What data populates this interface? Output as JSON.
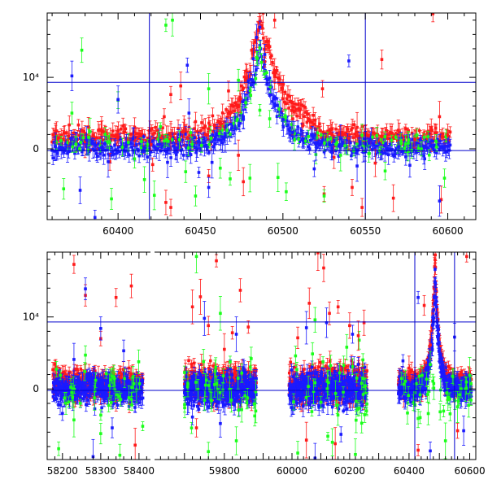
{
  "colors": {
    "red": "#ff1a1a",
    "green": "#1aff1a",
    "blue": "#1a1aff",
    "axis": "#000000",
    "reference": "#0000cc"
  },
  "chart_data": [
    {
      "type": "scatter",
      "title": "",
      "xlabel": "",
      "ylabel": "",
      "xlim": [
        60357,
        60617
      ],
      "ylim": [
        -9900,
        19000
      ],
      "xticks": [
        60400,
        60450,
        60500,
        60550,
        60600
      ],
      "yticks": [
        {
          "value": 0,
          "label": "0"
        },
        {
          "value": 10000,
          "label": "10⁴"
        }
      ],
      "reference_lines": {
        "horizontal": [
          -250,
          9300
        ],
        "vertical": [
          60419,
          60550
        ]
      },
      "grid": false,
      "legend": "none",
      "error_bars": true,
      "series": [
        {
          "color": "red",
          "points": [
            [
              60362,
              2200
            ],
            [
              60370,
              1800
            ],
            [
              60380,
              1000
            ],
            [
              60390,
              2600
            ],
            [
              60400,
              1600
            ],
            [
              60410,
              1200
            ],
            [
              60420,
              600
            ],
            [
              60428,
              4500
            ],
            [
              60432,
              1800
            ],
            [
              60440,
              2500
            ],
            [
              60447,
              3800
            ],
            [
              60455,
              2800
            ],
            [
              60462,
              3500
            ],
            [
              60468,
              5000
            ],
            [
              60474,
              7200
            ],
            [
              60478,
              9800
            ],
            [
              60482,
              13500
            ],
            [
              60485,
              16500
            ],
            [
              60488,
              19000
            ],
            [
              60491,
              14500
            ],
            [
              60495,
              10500
            ],
            [
              60500,
              7000
            ],
            [
              60506,
              4200
            ],
            [
              60512,
              3200
            ],
            [
              60520,
              2700
            ],
            [
              60530,
              2000
            ],
            [
              60540,
              1500
            ],
            [
              60550,
              2100
            ],
            [
              60560,
              1700
            ],
            [
              60570,
              2600
            ],
            [
              60580,
              1300
            ],
            [
              60590,
              2900
            ],
            [
              60600,
              1900
            ],
            [
              60395,
              -1800
            ],
            [
              60429,
              -7500
            ],
            [
              60432,
              -8200
            ],
            [
              60476,
              -4600
            ],
            [
              60525,
              -6300
            ],
            [
              60542,
              -5400
            ],
            [
              60548,
              -8200
            ],
            [
              60567,
              -6900
            ],
            [
              60596,
              -7100
            ],
            [
              60432,
              7600
            ],
            [
              60438,
              8800
            ],
            [
              60467,
              8100
            ],
            [
              60489,
              12200
            ],
            [
              60495,
              18000
            ],
            [
              60524,
              8400
            ],
            [
              60531,
              -1200
            ],
            [
              60545,
              3000
            ],
            [
              60556,
              -2000
            ],
            [
              60560,
              12500
            ],
            [
              60591,
              18900
            ],
            [
              60595,
              4500
            ],
            [
              60403,
              3200
            ],
            [
              60421,
              -2200
            ],
            [
              60455,
              -3800
            ],
            [
              60473,
              -900
            ]
          ]
        },
        {
          "color": "green",
          "points": [
            [
              60367,
              -5600
            ],
            [
              60372,
              5000
            ],
            [
              60378,
              13800
            ],
            [
              60383,
              2400
            ],
            [
              60396,
              -7000
            ],
            [
              60400,
              6800
            ],
            [
              60410,
              -1400
            ],
            [
              60416,
              -4300
            ],
            [
              60422,
              -6500
            ],
            [
              60425,
              1900
            ],
            [
              60429,
              17300
            ],
            [
              60433,
              18000
            ],
            [
              60441,
              -3200
            ],
            [
              60447,
              -6600
            ],
            [
              60455,
              8400
            ],
            [
              60462,
              -2700
            ],
            [
              60468,
              -4200
            ],
            [
              60473,
              9600
            ],
            [
              60480,
              -4100
            ],
            [
              60486,
              5400
            ],
            [
              60492,
              4200
            ],
            [
              60497,
              -4000
            ],
            [
              60502,
              -6000
            ],
            [
              60507,
              1300
            ],
            [
              60520,
              -800
            ],
            [
              60525,
              -6600
            ],
            [
              60535,
              -900
            ],
            [
              60548,
              1900
            ],
            [
              60562,
              -3100
            ],
            [
              60576,
              800
            ],
            [
              60588,
              1700
            ],
            [
              60598,
              -4100
            ]
          ]
        },
        {
          "color": "blue",
          "points": [
            [
              60362,
              300
            ],
            [
              60370,
              -400
            ],
            [
              60372,
              10200
            ],
            [
              60377,
              -5800
            ],
            [
              60381,
              1200
            ],
            [
              60386,
              -9600
            ],
            [
              60390,
              200
            ],
            [
              60394,
              -1800
            ],
            [
              60400,
              6900
            ],
            [
              60409,
              1400
            ],
            [
              60415,
              -400
            ],
            [
              60425,
              600
            ],
            [
              60430,
              -1900
            ],
            [
              60436,
              100
            ],
            [
              60443,
              5000
            ],
            [
              60449,
              -3300
            ],
            [
              60455,
              -5400
            ],
            [
              60459,
              700
            ],
            [
              60465,
              1700
            ],
            [
              60471,
              2800
            ],
            [
              60476,
              4500
            ],
            [
              60479,
              9500
            ],
            [
              60482,
              12600
            ],
            [
              60484,
              15600
            ],
            [
              60486,
              17000
            ],
            [
              60489,
              13200
            ],
            [
              60492,
              9900
            ],
            [
              60495,
              6300
            ],
            [
              60500,
              4100
            ],
            [
              60506,
              2300
            ],
            [
              60512,
              1400
            ],
            [
              60520,
              600
            ],
            [
              60530,
              -500
            ],
            [
              60535,
              1400
            ],
            [
              60540,
              12300
            ],
            [
              60545,
              -2400
            ],
            [
              60550,
              700
            ],
            [
              60560,
              -400
            ],
            [
              60570,
              300
            ],
            [
              60577,
              -2300
            ],
            [
              60586,
              -1400
            ],
            [
              60595,
              -7300
            ],
            [
              60600,
              400
            ],
            [
              60442,
              11700
            ],
            [
              60457,
              -1900
            ],
            [
              60519,
              -2800
            ]
          ]
        }
      ]
    },
    {
      "type": "scatter",
      "title": "",
      "xlabel": "",
      "ylabel": "",
      "broken_x_axis": true,
      "segments": [
        {
          "xlim": [
            58160,
            58430
          ],
          "xticks": [
            58200,
            58300,
            58400
          ]
        },
        {
          "xlim": [
            59625,
            59890
          ],
          "xticks": [
            59800
          ]
        },
        {
          "xlim": [
            59890,
            60285
          ],
          "xticks": [
            60000,
            60200
          ]
        },
        {
          "xlim": [
            60285,
            60620
          ],
          "xticks": [
            60400,
            60600
          ]
        }
      ],
      "ylim": [
        -9800,
        19000
      ],
      "yticks": [
        {
          "value": 0,
          "label": "0"
        },
        {
          "value": 10000,
          "label": "10⁴"
        }
      ],
      "reference_lines": {
        "horizontal": [
          -200,
          9300
        ],
        "vertical": [
          60419,
          60550
        ]
      },
      "grid": false,
      "legend": "none",
      "error_bars": true,
      "blocks": [
        {
          "x_start": 58175,
          "x_end": 58410,
          "spread": 2500
        },
        {
          "x_start": 59700,
          "x_end": 59880,
          "spread": 3000
        },
        {
          "x_start": 59990,
          "x_end": 60260,
          "spread": 3200
        },
        {
          "x_start": 60365,
          "x_end": 60605,
          "spread": 2000
        }
      ],
      "peak": {
        "x": 60486,
        "max": 19000,
        "width": 14
      },
      "series": [
        {
          "color": "red",
          "points": [
            [
              58230,
              17300
            ],
            [
              58260,
              13000
            ],
            [
              58300,
              7000
            ],
            [
              58340,
              12700
            ],
            [
              58380,
              14300
            ],
            [
              58390,
              -7800
            ],
            [
              59720,
              11400
            ],
            [
              59740,
              12800
            ],
            [
              59760,
              8800
            ],
            [
              59780,
              17800
            ],
            [
              59800,
              5500
            ],
            [
              59820,
              7800
            ],
            [
              59840,
              13700
            ],
            [
              59860,
              8600
            ],
            [
              60020,
              7100
            ],
            [
              60060,
              11900
            ],
            [
              60090,
              18900
            ],
            [
              60110,
              16800
            ],
            [
              60130,
              10500
            ],
            [
              60160,
              11400
            ],
            [
              60200,
              8800
            ],
            [
              60230,
              7400
            ],
            [
              60250,
              9200
            ],
            [
              60400,
              2900
            ],
            [
              60430,
              -8500
            ],
            [
              60450,
              11600
            ],
            [
              60470,
              6100
            ],
            [
              60530,
              3100
            ],
            [
              60560,
              -5800
            ],
            [
              60590,
              18400
            ],
            [
              59730,
              -5400
            ],
            [
              60050,
              -7100
            ],
            [
              60150,
              -7600
            ]
          ]
        },
        {
          "color": "green",
          "points": [
            [
              58190,
              -8300
            ],
            [
              58230,
              -4300
            ],
            [
              58260,
              4700
            ],
            [
              58300,
              -6200
            ],
            [
              58350,
              -9200
            ],
            [
              59730,
              18400
            ],
            [
              59760,
              -8700
            ],
            [
              59790,
              10500
            ],
            [
              59830,
              -7200
            ],
            [
              60020,
              -8900
            ],
            [
              60080,
              9600
            ],
            [
              60140,
              -7400
            ],
            [
              60190,
              5800
            ],
            [
              60220,
              -9100
            ],
            [
              60430,
              -4100
            ],
            [
              60470,
              3400
            ],
            [
              60520,
              -7200
            ],
            [
              60560,
              -2500
            ],
            [
              60600,
              1900
            ]
          ]
        },
        {
          "color": "blue",
          "points": [
            [
              58200,
              -3400
            ],
            [
              58230,
              4100
            ],
            [
              58260,
              13900
            ],
            [
              58280,
              -9400
            ],
            [
              58300,
              8400
            ],
            [
              58330,
              -5400
            ],
            [
              58360,
              5300
            ],
            [
              59720,
              -3900
            ],
            [
              59750,
              9800
            ],
            [
              59790,
              -4800
            ],
            [
              59830,
              7600
            ],
            [
              60050,
              8500
            ],
            [
              60080,
              -9600
            ],
            [
              60120,
              9200
            ],
            [
              60170,
              -6300
            ],
            [
              60210,
              7600
            ],
            [
              60380,
              3900
            ],
            [
              60430,
              12700
            ],
            [
              60470,
              -8600
            ],
            [
              60550,
              7200
            ],
            [
              60580,
              -5800
            ]
          ]
        }
      ]
    }
  ]
}
